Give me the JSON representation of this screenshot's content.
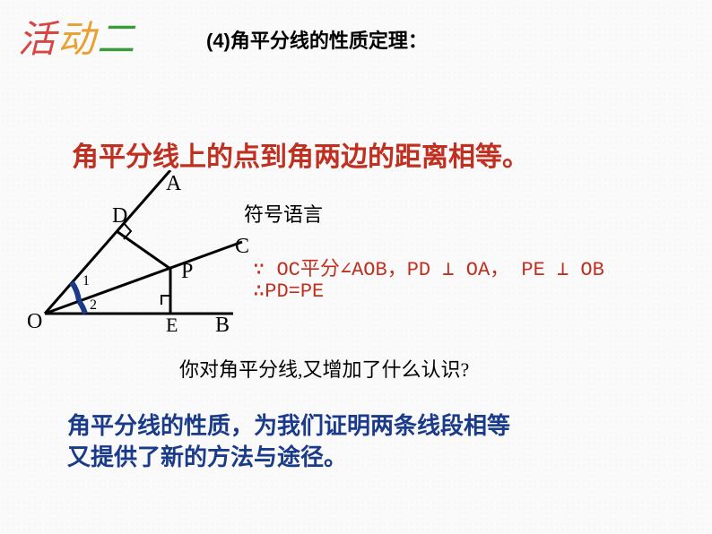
{
  "activity": {
    "ch1": "活",
    "ch2": "动",
    "ch3": "二"
  },
  "heading": "(4)角平分线的性质定理：",
  "theorem": "角平分线上的点到角两边的距离相等。",
  "symbol_label": "符号语言",
  "math": {
    "line1": "∵ OC平分∠AOB，PD ⊥ OA， PE ⊥ OB",
    "line2": "∴PD=PE"
  },
  "question": "你对角平分线,又增加了什么认识?",
  "conclusion": "角平分线的性质，为我们证明两条线段相等\n又提供了新的方法与途径。",
  "diagram": {
    "labels": {
      "O": "O",
      "A": "A",
      "B": "B",
      "C": "C",
      "D": "D",
      "E": "E",
      "P": "P",
      "ang1": "1",
      "ang2": "2"
    },
    "colors": {
      "line": "#000000",
      "arc": "#1a3a8a",
      "label": "#000000",
      "label_font": "Times New Roman"
    },
    "stroke_width": 3,
    "arc_width": 6,
    "label_fontsize": 24
  }
}
